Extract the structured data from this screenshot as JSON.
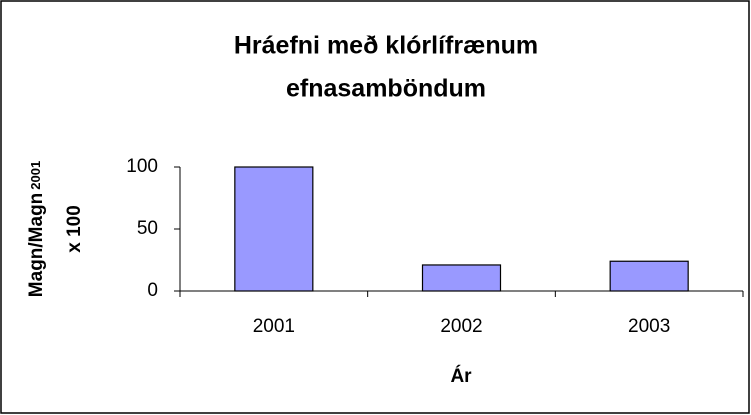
{
  "chart_data": {
    "type": "bar",
    "title": [
      "Hráefni með klórlífrænum",
      "efnasamböndum"
    ],
    "ylabel": {
      "main": "Magn/Magn",
      "sub": "2001",
      "line2": "x 100"
    },
    "xlabel": "Ár",
    "categories": [
      "2001",
      "2002",
      "2003"
    ],
    "values": [
      100,
      21,
      24
    ],
    "color": "#9999ff",
    "ylim": [
      0,
      100
    ],
    "yticks": [
      0,
      50,
      100
    ]
  }
}
